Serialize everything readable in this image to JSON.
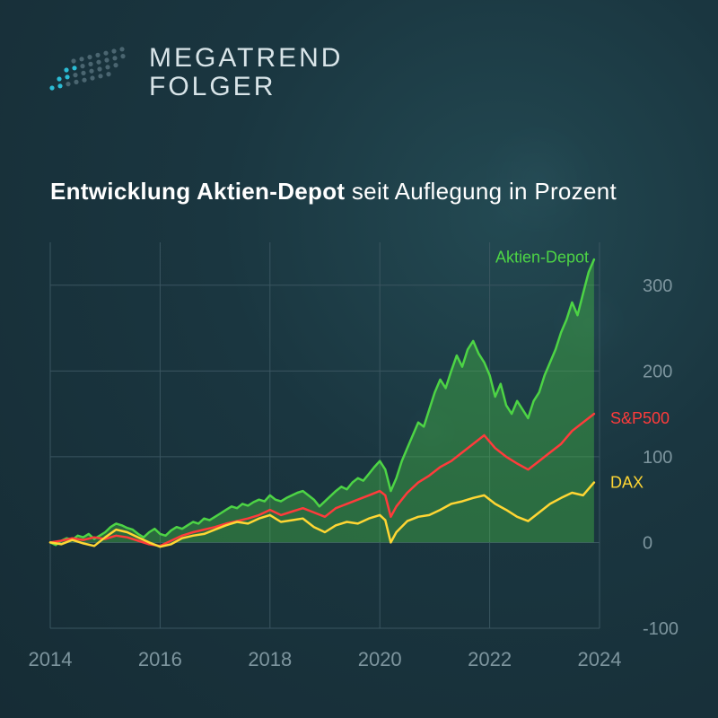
{
  "logo": {
    "line1": "MEGATREND",
    "line2": "FOLGER",
    "dot_color_accent": "#2bbcd4",
    "dot_color_muted": "#4a6570"
  },
  "title": {
    "bold": "Entwicklung Aktien-Depot",
    "rest": " seit Auflegung in Prozent"
  },
  "chart": {
    "type": "line-area",
    "background_color": "transparent",
    "grid_color": "#3a5560",
    "axis_label_color": "#7d959e",
    "y_axis": {
      "min": -100,
      "max": 350,
      "ticks": [
        -100,
        0,
        100,
        200,
        300
      ],
      "fontsize": 20
    },
    "x_axis": {
      "min": 2014,
      "max": 2024,
      "ticks": [
        2014,
        2016,
        2018,
        2020,
        2022,
        2024
      ],
      "fontsize": 22
    },
    "series": [
      {
        "name": "Aktien-Depot",
        "label": "Aktien-Depot",
        "color": "#4dd445",
        "fill_color": "#4dd445",
        "fill_opacity": 0.35,
        "line_width": 2.5,
        "type": "area",
        "label_y": 320,
        "data": [
          [
            2014.0,
            0
          ],
          [
            2014.1,
            -3
          ],
          [
            2014.2,
            2
          ],
          [
            2014.3,
            5
          ],
          [
            2014.4,
            3
          ],
          [
            2014.5,
            8
          ],
          [
            2014.6,
            6
          ],
          [
            2014.7,
            10
          ],
          [
            2014.8,
            4
          ],
          [
            2014.9,
            8
          ],
          [
            2015.0,
            12
          ],
          [
            2015.1,
            18
          ],
          [
            2015.2,
            22
          ],
          [
            2015.3,
            20
          ],
          [
            2015.4,
            17
          ],
          [
            2015.5,
            15
          ],
          [
            2015.6,
            10
          ],
          [
            2015.7,
            6
          ],
          [
            2015.8,
            12
          ],
          [
            2015.9,
            16
          ],
          [
            2016.0,
            10
          ],
          [
            2016.1,
            8
          ],
          [
            2016.2,
            14
          ],
          [
            2016.3,
            18
          ],
          [
            2016.4,
            16
          ],
          [
            2016.5,
            20
          ],
          [
            2016.6,
            24
          ],
          [
            2016.7,
            22
          ],
          [
            2016.8,
            28
          ],
          [
            2016.9,
            26
          ],
          [
            2017.0,
            30
          ],
          [
            2017.1,
            34
          ],
          [
            2017.2,
            38
          ],
          [
            2017.3,
            42
          ],
          [
            2017.4,
            40
          ],
          [
            2017.5,
            45
          ],
          [
            2017.6,
            43
          ],
          [
            2017.7,
            47
          ],
          [
            2017.8,
            50
          ],
          [
            2017.9,
            48
          ],
          [
            2018.0,
            55
          ],
          [
            2018.1,
            50
          ],
          [
            2018.2,
            48
          ],
          [
            2018.3,
            52
          ],
          [
            2018.4,
            55
          ],
          [
            2018.5,
            58
          ],
          [
            2018.6,
            60
          ],
          [
            2018.7,
            55
          ],
          [
            2018.8,
            50
          ],
          [
            2018.9,
            42
          ],
          [
            2019.0,
            48
          ],
          [
            2019.1,
            54
          ],
          [
            2019.2,
            60
          ],
          [
            2019.3,
            65
          ],
          [
            2019.4,
            62
          ],
          [
            2019.5,
            70
          ],
          [
            2019.6,
            75
          ],
          [
            2019.7,
            72
          ],
          [
            2019.8,
            80
          ],
          [
            2019.9,
            88
          ],
          [
            2020.0,
            95
          ],
          [
            2020.1,
            85
          ],
          [
            2020.2,
            60
          ],
          [
            2020.3,
            75
          ],
          [
            2020.4,
            95
          ],
          [
            2020.5,
            110
          ],
          [
            2020.6,
            125
          ],
          [
            2020.7,
            140
          ],
          [
            2020.8,
            135
          ],
          [
            2020.9,
            155
          ],
          [
            2021.0,
            175
          ],
          [
            2021.1,
            190
          ],
          [
            2021.2,
            180
          ],
          [
            2021.3,
            200
          ],
          [
            2021.4,
            218
          ],
          [
            2021.5,
            205
          ],
          [
            2021.6,
            225
          ],
          [
            2021.7,
            235
          ],
          [
            2021.8,
            220
          ],
          [
            2021.9,
            210
          ],
          [
            2022.0,
            195
          ],
          [
            2022.1,
            170
          ],
          [
            2022.2,
            185
          ],
          [
            2022.3,
            160
          ],
          [
            2022.4,
            150
          ],
          [
            2022.5,
            165
          ],
          [
            2022.6,
            155
          ],
          [
            2022.7,
            145
          ],
          [
            2022.8,
            165
          ],
          [
            2022.9,
            175
          ],
          [
            2023.0,
            195
          ],
          [
            2023.1,
            210
          ],
          [
            2023.2,
            225
          ],
          [
            2023.3,
            245
          ],
          [
            2023.4,
            260
          ],
          [
            2023.5,
            280
          ],
          [
            2023.6,
            265
          ],
          [
            2023.7,
            290
          ],
          [
            2023.8,
            315
          ],
          [
            2023.9,
            330
          ]
        ]
      },
      {
        "name": "S&P500",
        "label": "S&P500",
        "color": "#ff3b3b",
        "line_width": 2.5,
        "type": "line",
        "label_y": 145,
        "data": [
          [
            2014.0,
            0
          ],
          [
            2014.2,
            2
          ],
          [
            2014.4,
            5
          ],
          [
            2014.6,
            3
          ],
          [
            2014.8,
            6
          ],
          [
            2015.0,
            4
          ],
          [
            2015.2,
            8
          ],
          [
            2015.4,
            6
          ],
          [
            2015.6,
            2
          ],
          [
            2015.8,
            -2
          ],
          [
            2016.0,
            -4
          ],
          [
            2016.2,
            2
          ],
          [
            2016.4,
            8
          ],
          [
            2016.6,
            12
          ],
          [
            2016.8,
            15
          ],
          [
            2017.0,
            18
          ],
          [
            2017.2,
            22
          ],
          [
            2017.4,
            25
          ],
          [
            2017.6,
            28
          ],
          [
            2017.8,
            32
          ],
          [
            2018.0,
            38
          ],
          [
            2018.2,
            32
          ],
          [
            2018.4,
            36
          ],
          [
            2018.6,
            40
          ],
          [
            2018.8,
            35
          ],
          [
            2019.0,
            30
          ],
          [
            2019.2,
            40
          ],
          [
            2019.4,
            45
          ],
          [
            2019.6,
            50
          ],
          [
            2019.8,
            55
          ],
          [
            2020.0,
            60
          ],
          [
            2020.1,
            55
          ],
          [
            2020.2,
            30
          ],
          [
            2020.3,
            42
          ],
          [
            2020.5,
            58
          ],
          [
            2020.7,
            70
          ],
          [
            2020.9,
            78
          ],
          [
            2021.1,
            88
          ],
          [
            2021.3,
            95
          ],
          [
            2021.5,
            105
          ],
          [
            2021.7,
            115
          ],
          [
            2021.9,
            125
          ],
          [
            2022.1,
            110
          ],
          [
            2022.3,
            100
          ],
          [
            2022.5,
            92
          ],
          [
            2022.7,
            85
          ],
          [
            2022.9,
            95
          ],
          [
            2023.1,
            105
          ],
          [
            2023.3,
            115
          ],
          [
            2023.5,
            130
          ],
          [
            2023.7,
            140
          ],
          [
            2023.9,
            150
          ]
        ]
      },
      {
        "name": "DAX",
        "label": "DAX",
        "color": "#ffd633",
        "line_width": 2.5,
        "type": "line",
        "label_y": 70,
        "data": [
          [
            2014.0,
            0
          ],
          [
            2014.2,
            -2
          ],
          [
            2014.4,
            3
          ],
          [
            2014.6,
            -1
          ],
          [
            2014.8,
            -4
          ],
          [
            2015.0,
            6
          ],
          [
            2015.2,
            15
          ],
          [
            2015.4,
            12
          ],
          [
            2015.6,
            6
          ],
          [
            2015.8,
            0
          ],
          [
            2016.0,
            -5
          ],
          [
            2016.2,
            -2
          ],
          [
            2016.4,
            5
          ],
          [
            2016.6,
            8
          ],
          [
            2016.8,
            10
          ],
          [
            2017.0,
            15
          ],
          [
            2017.2,
            20
          ],
          [
            2017.4,
            24
          ],
          [
            2017.6,
            22
          ],
          [
            2017.8,
            28
          ],
          [
            2018.0,
            32
          ],
          [
            2018.2,
            24
          ],
          [
            2018.4,
            26
          ],
          [
            2018.6,
            28
          ],
          [
            2018.8,
            18
          ],
          [
            2019.0,
            12
          ],
          [
            2019.2,
            20
          ],
          [
            2019.4,
            24
          ],
          [
            2019.6,
            22
          ],
          [
            2019.8,
            28
          ],
          [
            2020.0,
            32
          ],
          [
            2020.1,
            26
          ],
          [
            2020.2,
            0
          ],
          [
            2020.3,
            12
          ],
          [
            2020.5,
            25
          ],
          [
            2020.7,
            30
          ],
          [
            2020.9,
            32
          ],
          [
            2021.1,
            38
          ],
          [
            2021.3,
            45
          ],
          [
            2021.5,
            48
          ],
          [
            2021.7,
            52
          ],
          [
            2021.9,
            55
          ],
          [
            2022.1,
            45
          ],
          [
            2022.3,
            38
          ],
          [
            2022.5,
            30
          ],
          [
            2022.7,
            25
          ],
          [
            2022.9,
            35
          ],
          [
            2023.1,
            45
          ],
          [
            2023.3,
            52
          ],
          [
            2023.5,
            58
          ],
          [
            2023.7,
            55
          ],
          [
            2023.9,
            70
          ]
        ]
      }
    ]
  }
}
